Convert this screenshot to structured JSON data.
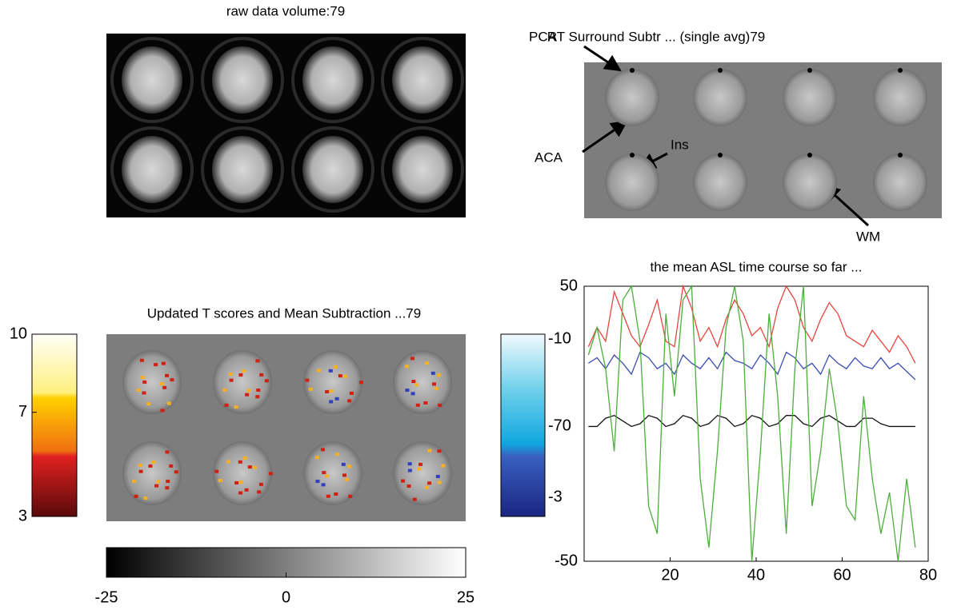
{
  "raw_panel": {
    "title": "raw data volume:79"
  },
  "subtraction_panel": {
    "title": "RT Surround Subtr ... (single avg)79",
    "annotations": [
      "PCA",
      "ACA",
      "Ins",
      "WM"
    ]
  },
  "tscore_panel": {
    "title": "Updated T scores and Mean Subtraction ...79",
    "warm_colorbar": {
      "range": [
        3,
        10
      ],
      "ticks": [
        10,
        7,
        3
      ]
    },
    "gray_colorbar": {
      "range": [
        -25,
        25
      ],
      "ticks": [
        -25,
        0,
        25
      ]
    }
  },
  "chart_data": {
    "type": "line",
    "title": "the mean ASL time course so far ...",
    "x": [
      1,
      3,
      5,
      7,
      9,
      11,
      13,
      15,
      17,
      19,
      21,
      23,
      25,
      27,
      29,
      31,
      33,
      35,
      37,
      39,
      41,
      43,
      45,
      47,
      49,
      51,
      53,
      55,
      57,
      59,
      61,
      63,
      65,
      67,
      69,
      71,
      73,
      75,
      77
    ],
    "xlim": [
      0,
      80
    ],
    "xticks": [
      20,
      40,
      60,
      80
    ],
    "ylim": [
      -50,
      50
    ],
    "yticks": [
      50,
      -50
    ],
    "overlay_labels": [
      "-10",
      "-70",
      "-3"
    ],
    "series": [
      {
        "color": "#e8453c",
        "values": [
          28,
          35,
          30,
          48,
          40,
          32,
          28,
          36,
          45,
          30,
          28,
          50,
          42,
          30,
          35,
          28,
          38,
          45,
          40,
          32,
          35,
          28,
          42,
          50,
          45,
          35,
          30,
          38,
          44,
          40,
          32,
          30,
          28,
          34,
          30,
          26,
          32,
          28,
          22
        ]
      },
      {
        "color": "#3d4fb0",
        "values": [
          22,
          24,
          20,
          25,
          22,
          18,
          26,
          24,
          20,
          22,
          18,
          25,
          22,
          20,
          24,
          20,
          26,
          23,
          22,
          20,
          25,
          22,
          18,
          26,
          24,
          20,
          22,
          18,
          25,
          22,
          20,
          24,
          21,
          20,
          24,
          20,
          22,
          19,
          16
        ]
      },
      {
        "color": "#111111",
        "values": [
          -1,
          -1,
          2,
          3,
          1,
          -1,
          0,
          3,
          2,
          -1,
          0,
          3,
          2,
          -1,
          0,
          3,
          2,
          -1,
          0,
          3,
          2,
          -1,
          0,
          3,
          3,
          0,
          -1,
          2,
          3,
          1,
          -1,
          -1,
          2,
          2,
          0,
          -1,
          -1,
          -1,
          -1
        ]
      },
      {
        "color": "#4caf3a",
        "values": [
          25,
          35,
          20,
          -10,
          45,
          50,
          30,
          -30,
          -40,
          40,
          10,
          45,
          50,
          -20,
          -45,
          -10,
          35,
          50,
          30,
          -50,
          -10,
          40,
          10,
          -40,
          20,
          50,
          -30,
          -10,
          20,
          0,
          -30,
          -35,
          10,
          -20,
          -40,
          -25,
          -50,
          -20,
          -45
        ]
      }
    ]
  }
}
